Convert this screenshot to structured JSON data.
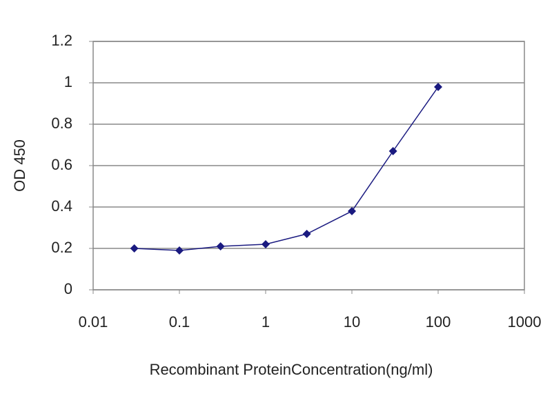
{
  "chart_data": {
    "type": "line",
    "x_label": "Recombinant ProteinConcentration(ng/ml)",
    "y_label": "OD 450",
    "x": [
      0.03,
      0.1,
      0.3,
      1,
      3,
      10,
      30,
      100
    ],
    "series": [
      {
        "color": "#1a1a80",
        "values": [
          0.2,
          0.19,
          0.21,
          0.22,
          0.27,
          0.38,
          0.67,
          0.98
        ]
      }
    ],
    "xscale": "log",
    "xlim": [
      0.01,
      1000
    ],
    "xticks": [
      0.01,
      0.1,
      1,
      10,
      100,
      1000
    ],
    "ylim": [
      0,
      1.2
    ],
    "yticks": [
      0,
      0.2,
      0.4,
      0.6,
      0.8,
      1,
      1.2
    ],
    "grid": true
  }
}
